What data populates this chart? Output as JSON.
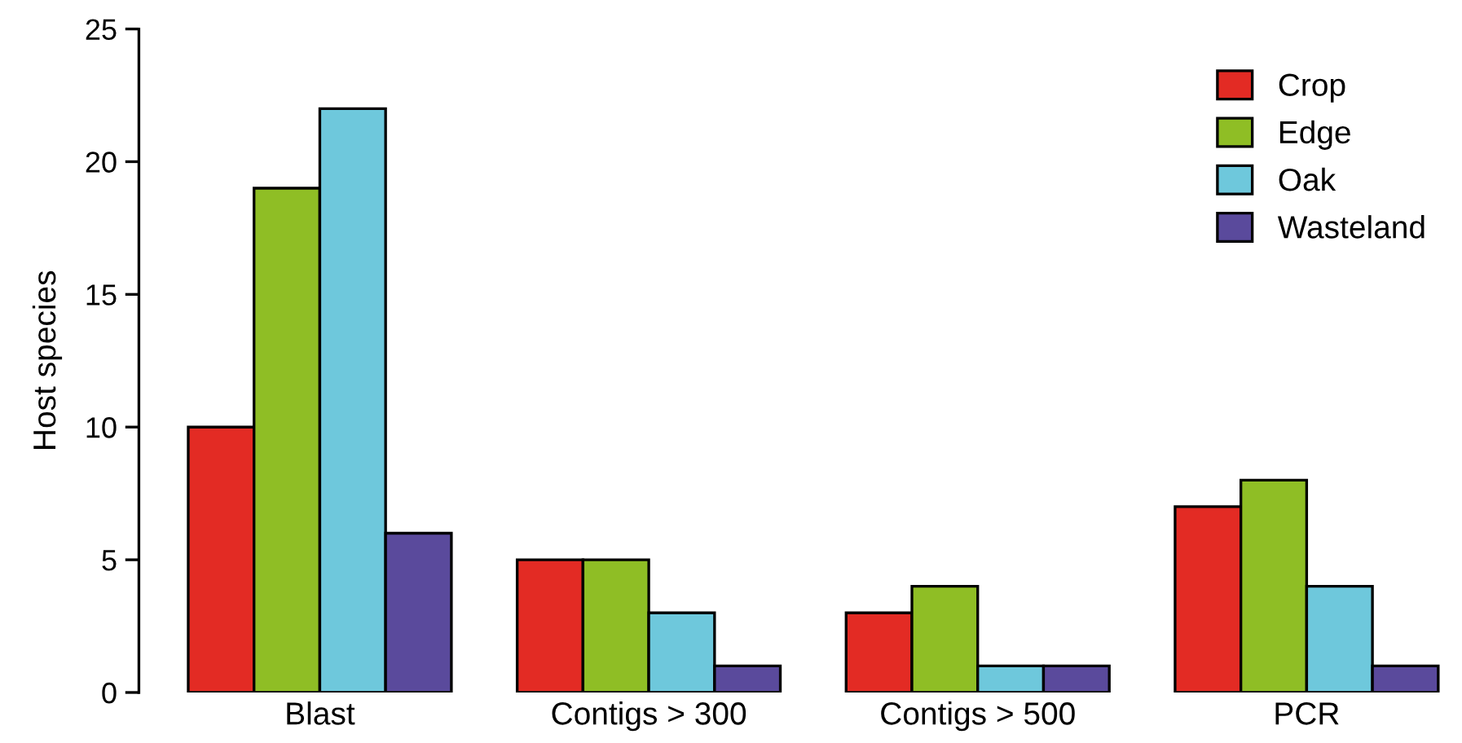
{
  "chart_data": {
    "type": "bar",
    "ylabel": "Host species",
    "categories": [
      "Blast",
      "Contigs > 300",
      "Contigs > 500",
      "PCR"
    ],
    "series": [
      {
        "name": "Crop",
        "color": "#e32b24",
        "values": [
          10,
          5,
          3,
          7
        ]
      },
      {
        "name": "Edge",
        "color": "#8fbe25",
        "values": [
          19,
          5,
          4,
          8
        ]
      },
      {
        "name": "Oak",
        "color": "#6ec8dc",
        "values": [
          22,
          3,
          1,
          4
        ]
      },
      {
        "name": "Wasteland",
        "color": "#5a4a9c",
        "values": [
          6,
          1,
          1,
          1
        ]
      }
    ],
    "ylim": [
      0,
      25
    ],
    "yticks": [
      0,
      5,
      10,
      15,
      20,
      25
    ],
    "grid": false,
    "legend": "top right"
  }
}
